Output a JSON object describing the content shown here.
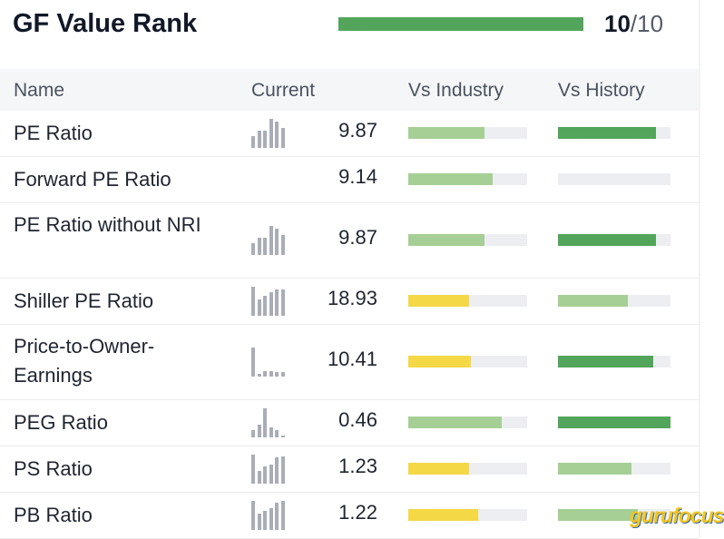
{
  "header": {
    "title": "GF Value Rank",
    "rank": "10",
    "rank_total": "/10",
    "rank_fraction": 1.0,
    "rank_color": "#52a55a"
  },
  "columns": {
    "name": "Name",
    "current": "Current",
    "vs_industry": "Vs Industry",
    "vs_history": "Vs History"
  },
  "colors": {
    "dark_green": "#52a55a",
    "light_green": "#a6cf95",
    "yellow": "#f4d846",
    "track": "#eceef2",
    "spark": "#a9adb8"
  },
  "rows": [
    {
      "name": "PE Ratio",
      "current": "9.87",
      "spark": [
        0.4,
        0.6,
        0.6,
        1.0,
        0.9,
        0.7
      ],
      "industry": 0.64,
      "industry_color": "light_green",
      "history": 0.87,
      "history_color": "dark_green"
    },
    {
      "name": "Forward PE Ratio",
      "current": "9.14",
      "spark": [],
      "industry": 0.71,
      "industry_color": "light_green",
      "history": 0,
      "history_color": "dark_green"
    },
    {
      "name": "PE Ratio without NRI",
      "current": "9.87",
      "spark": [
        0.4,
        0.6,
        0.6,
        1.0,
        0.9,
        0.7
      ],
      "industry": 0.64,
      "industry_color": "light_green",
      "history": 0.87,
      "history_color": "dark_green"
    },
    {
      "name": "Shiller PE Ratio",
      "current": "18.93",
      "spark": [
        1.0,
        0.55,
        0.7,
        0.8,
        0.9,
        0.9
      ],
      "industry": 0.51,
      "industry_color": "yellow",
      "history": 0.62,
      "history_color": "light_green"
    },
    {
      "name": "Price-to-Owner-Earnings",
      "current": "10.41",
      "spark": [
        1.0,
        0.1,
        0.2,
        0.2,
        0.15,
        0.15
      ],
      "industry": 0.53,
      "industry_color": "yellow",
      "history": 0.85,
      "history_color": "dark_green"
    },
    {
      "name": "PEG Ratio",
      "current": "0.46",
      "spark": [
        0.25,
        0.45,
        1.0,
        0.35,
        0.25,
        0.05
      ],
      "industry": 0.79,
      "industry_color": "light_green",
      "history": 1.0,
      "history_color": "dark_green"
    },
    {
      "name": "PS Ratio",
      "current": "1.23",
      "spark": [
        1.0,
        0.45,
        0.6,
        0.65,
        0.9,
        0.95
      ],
      "industry": 0.51,
      "industry_color": "yellow",
      "history": 0.65,
      "history_color": "light_green"
    },
    {
      "name": "PB Ratio",
      "current": "1.22",
      "spark": [
        1.0,
        0.55,
        0.65,
        0.75,
        0.95,
        1.0
      ],
      "industry": 0.59,
      "industry_color": "yellow",
      "history": 0.71,
      "history_color": "light_green"
    }
  ],
  "brand": {
    "logo_text": "gurufocus"
  }
}
